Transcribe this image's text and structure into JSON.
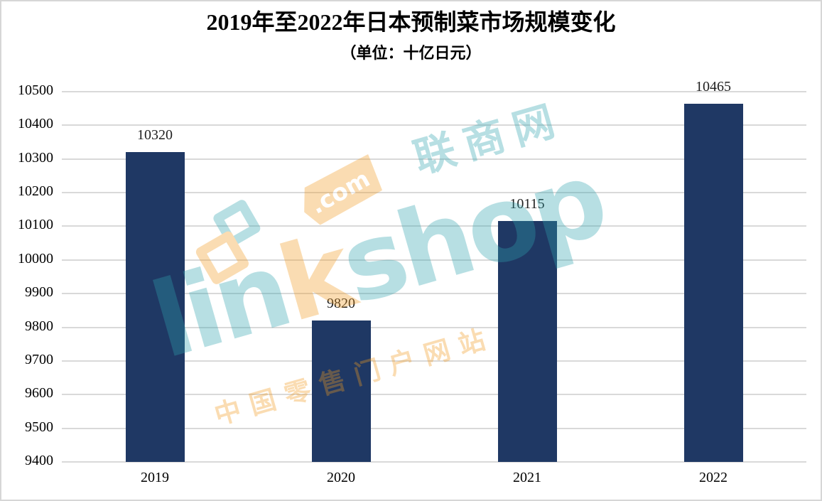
{
  "chart_data": {
    "type": "bar",
    "title": "2019年至2022年日本预制菜市场规模变化",
    "subtitle": "（单位：十亿日元）",
    "categories": [
      "2019",
      "2020",
      "2021",
      "2022"
    ],
    "values": [
      10320,
      9820,
      10115,
      10465
    ],
    "data_labels": [
      "10320",
      "9820",
      "10115",
      "10465"
    ],
    "ylim": [
      9400,
      10500
    ],
    "ytick_step": 100,
    "yticks": [
      9400,
      9500,
      9600,
      9700,
      9800,
      9900,
      10000,
      10100,
      10200,
      10300,
      10400,
      10500
    ],
    "xlabel": "",
    "ylabel": "",
    "grid": "horizontal",
    "legend": "none",
    "bar_color": "#1f3864",
    "gridline_color": "#d9d9d9",
    "label_color": "#1f1f1f"
  },
  "watermark": {
    "brand_prefix": "lin",
    "brand_k": "k",
    "brand_suffix": "shop",
    "tag_label": ".com",
    "cn_name": "联商网",
    "cn_tagline": "中国零售门户网站",
    "teal": "#2fa3ae",
    "orange": "#f39b1f",
    "logo": "interlocked-squares-icon"
  }
}
